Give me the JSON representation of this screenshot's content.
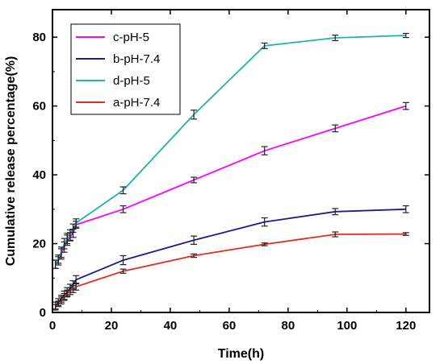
{
  "chart_data": {
    "type": "line",
    "xlabel": "Time(h)",
    "ylabel": "Cumulative release percentage(%)",
    "xlim": [
      0,
      128
    ],
    "ylim": [
      0,
      88
    ],
    "xticks": [
      0,
      20,
      40,
      60,
      80,
      100,
      120
    ],
    "yticks": [
      0,
      20,
      40,
      60,
      80
    ],
    "legend_position": "top-left",
    "grid": false,
    "error_bars": true,
    "series": [
      {
        "name": "c-pH-5",
        "color": "#ff00ff",
        "x": [
          1,
          2,
          3,
          4,
          5,
          6,
          7,
          8,
          24,
          48,
          72,
          96,
          120
        ],
        "y": [
          14,
          15,
          17,
          19,
          21,
          22,
          23,
          25.5,
          30,
          38.5,
          47,
          53.5,
          60
        ],
        "err": [
          1.2,
          1.2,
          1.5,
          1.5,
          1.5,
          1.2,
          1.2,
          1,
          1,
          0.8,
          1.2,
          1,
          1
        ]
      },
      {
        "name": "b-pH-7.4",
        "color": "#1c1c8e",
        "x": [
          1,
          2,
          3,
          4,
          5,
          6,
          7,
          8,
          24,
          48,
          72,
          96,
          120
        ],
        "y": [
          2,
          3,
          4,
          5,
          6,
          7,
          8,
          9.5,
          15.2,
          21,
          26.3,
          29.3,
          30
        ],
        "err": [
          1,
          1,
          1,
          1.2,
          1.2,
          1.2,
          1.2,
          1.2,
          1.3,
          1.2,
          1.2,
          0.9,
          1
        ]
      },
      {
        "name": "d-pH-5",
        "color": "#20b2aa",
        "x": [
          1,
          2,
          3,
          4,
          5,
          6,
          7,
          8,
          24,
          48,
          72,
          96,
          120
        ],
        "y": [
          14,
          15.5,
          17.5,
          20,
          21.5,
          22.5,
          24.5,
          26,
          35.5,
          57.5,
          77.5,
          79.8,
          80.5
        ],
        "err": [
          1.2,
          1.2,
          1.5,
          1.5,
          1.5,
          1.5,
          1.2,
          1.2,
          1,
          1.3,
          0.8,
          0.8,
          0.6
        ]
      },
      {
        "name": "a-pH-7.4",
        "color": "#e8291c",
        "x": [
          1,
          2,
          3,
          4,
          5,
          6,
          7,
          8,
          24,
          48,
          72,
          96,
          120
        ],
        "y": [
          1.5,
          2.5,
          3.5,
          4.5,
          5.5,
          6.2,
          6.8,
          7.5,
          12,
          16.5,
          19.8,
          22.7,
          22.8
        ],
        "err": [
          0.8,
          0.8,
          1,
          1,
          1,
          1,
          1,
          1,
          0.6,
          0.5,
          0.4,
          0.7,
          0.4
        ]
      }
    ]
  }
}
